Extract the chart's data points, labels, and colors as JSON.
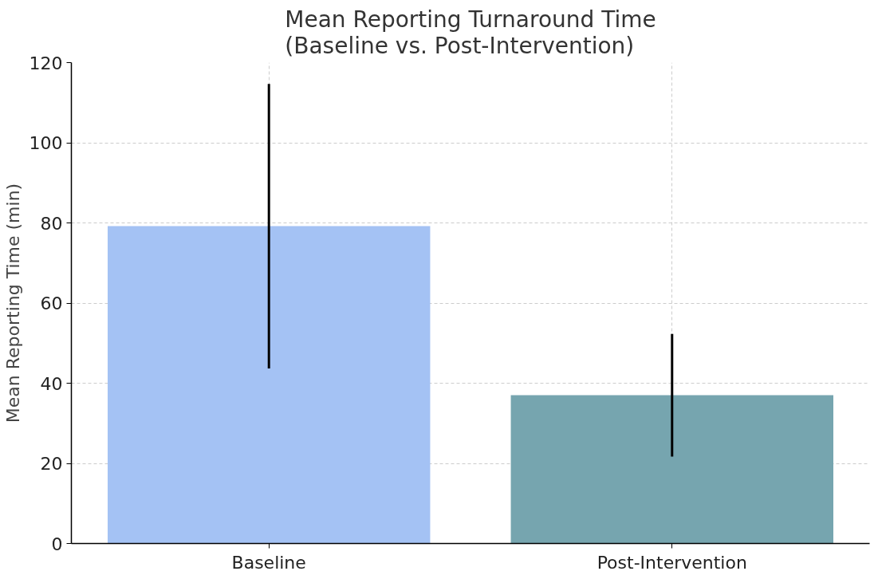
{
  "chart_data": {
    "type": "bar",
    "title": "Mean Reporting Turnaround Time\n(Baseline vs. Post-Intervention)",
    "ylabel": "Mean Reporting Time (min)",
    "categories": [
      "Baseline",
      "Post-Intervention"
    ],
    "values": [
      79.2,
      37.0
    ],
    "colors": [
      "#a4c2f4",
      "#76a5af"
    ],
    "errors": [
      35.5,
      15.3
    ],
    "ylim": [
      0,
      120
    ],
    "yticks": [
      0,
      20,
      40,
      60,
      80,
      100,
      120
    ],
    "grid": true
  }
}
